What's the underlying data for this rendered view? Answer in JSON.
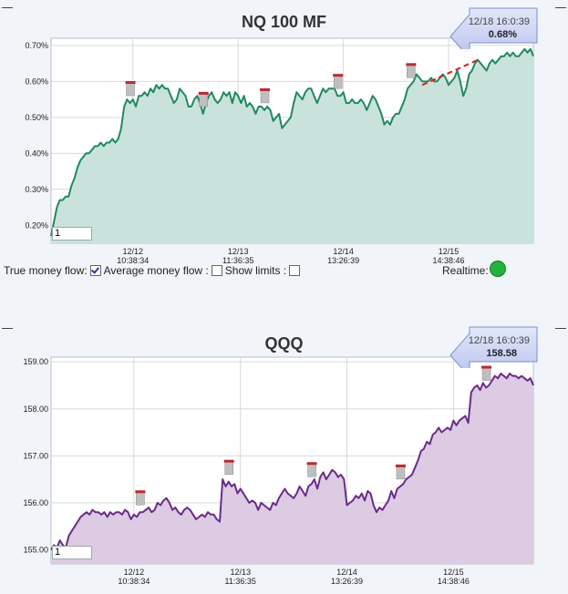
{
  "chart_data": [
    {
      "type": "area",
      "title": "NQ 100 MF",
      "ylim": [
        0.15,
        0.72
      ],
      "yticks": [
        0.2,
        0.3,
        0.4,
        0.5,
        0.6,
        0.7
      ],
      "ytick_labels": [
        "0.20%",
        "0.30%",
        "0.40%",
        "0.50%",
        "0.60%",
        "0.70%"
      ],
      "x_ticks": [
        {
          "date": "12/12",
          "time": "10:38:34"
        },
        {
          "date": "12/13",
          "time": "11:36:35"
        },
        {
          "date": "12/14",
          "time": "13:26:39"
        },
        {
          "date": "12/15",
          "time": "14:38:46"
        }
      ],
      "x_tick_index": [
        28,
        64,
        100,
        136
      ],
      "grid": true,
      "line_color": "#1e8a5e",
      "fill_color": "#c9e3dc",
      "values": [
        0.17,
        0.21,
        0.25,
        0.27,
        0.27,
        0.28,
        0.28,
        0.31,
        0.33,
        0.36,
        0.38,
        0.39,
        0.4,
        0.4,
        0.41,
        0.42,
        0.42,
        0.43,
        0.42,
        0.43,
        0.43,
        0.44,
        0.43,
        0.44,
        0.47,
        0.53,
        0.55,
        0.54,
        0.55,
        0.53,
        0.56,
        0.56,
        0.57,
        0.56,
        0.58,
        0.57,
        0.59,
        0.58,
        0.59,
        0.58,
        0.58,
        0.56,
        0.54,
        0.55,
        0.58,
        0.57,
        0.56,
        0.53,
        0.53,
        0.55,
        0.56,
        0.54,
        0.51,
        0.54,
        0.56,
        0.57,
        0.55,
        0.54,
        0.55,
        0.57,
        0.56,
        0.57,
        0.54,
        0.57,
        0.56,
        0.54,
        0.56,
        0.53,
        0.54,
        0.53,
        0.51,
        0.53,
        0.53,
        0.52,
        0.53,
        0.52,
        0.49,
        0.5,
        0.51,
        0.47,
        0.48,
        0.49,
        0.5,
        0.54,
        0.57,
        0.56,
        0.55,
        0.57,
        0.58,
        0.58,
        0.56,
        0.54,
        0.56,
        0.58,
        0.57,
        0.58,
        0.58,
        0.58,
        0.56,
        0.56,
        0.57,
        0.54,
        0.54,
        0.55,
        0.54,
        0.54,
        0.55,
        0.54,
        0.52,
        0.54,
        0.56,
        0.55,
        0.53,
        0.51,
        0.48,
        0.49,
        0.48,
        0.5,
        0.51,
        0.51,
        0.53,
        0.55,
        0.58,
        0.59,
        0.6,
        0.62,
        0.61,
        0.6,
        0.6,
        0.6,
        0.61,
        0.6,
        0.6,
        0.61,
        0.62,
        0.61,
        0.59,
        0.6,
        0.61,
        0.63,
        0.6,
        0.56,
        0.58,
        0.62,
        0.63,
        0.65,
        0.66,
        0.65,
        0.64,
        0.63,
        0.65,
        0.66,
        0.65,
        0.66,
        0.67,
        0.67,
        0.68,
        0.67,
        0.68,
        0.67,
        0.67,
        0.68,
        0.69,
        0.68,
        0.69,
        0.67
      ],
      "markers": [
        27,
        52,
        73,
        98,
        123
      ],
      "trend_line": {
        "from": [
          127,
          0.59
        ],
        "to": [
          146,
          0.66
        ],
        "color": "#e02020"
      }
    },
    {
      "type": "area",
      "title": "QQQ",
      "ylim": [
        154.7,
        159.1
      ],
      "yticks": [
        155,
        156,
        157,
        158,
        159
      ],
      "ytick_labels": [
        "155.00",
        "156.00",
        "157.00",
        "158.00",
        "159.00"
      ],
      "x_ticks": [
        {
          "date": "12/12",
          "time": "10:38:34"
        },
        {
          "date": "12/13",
          "time": "11:36:35"
        },
        {
          "date": "12/14",
          "time": "13:26:39"
        },
        {
          "date": "12/15",
          "time": "14:38:46"
        }
      ],
      "x_tick_index": [
        28,
        64,
        100,
        136
      ],
      "grid": true,
      "line_color": "#6b2a8a",
      "fill_color": "#dccbe3",
      "values": [
        155.0,
        155.1,
        155.05,
        155.2,
        155.1,
        155.05,
        155.3,
        155.4,
        155.5,
        155.6,
        155.7,
        155.75,
        155.8,
        155.75,
        155.85,
        155.8,
        155.8,
        155.75,
        155.8,
        155.7,
        155.8,
        155.75,
        155.8,
        155.8,
        155.75,
        155.85,
        155.8,
        155.65,
        155.75,
        155.7,
        155.8,
        155.8,
        155.85,
        155.9,
        155.8,
        155.85,
        156.0,
        155.95,
        156.05,
        156.1,
        156.0,
        155.85,
        155.9,
        155.8,
        155.75,
        155.85,
        155.9,
        155.85,
        155.75,
        155.65,
        155.7,
        155.75,
        155.7,
        155.8,
        155.75,
        155.75,
        155.65,
        155.6,
        156.5,
        156.35,
        156.45,
        156.35,
        156.4,
        156.2,
        156.3,
        156.2,
        156.1,
        156.0,
        156.05,
        156.0,
        155.85,
        156.0,
        155.95,
        155.9,
        155.85,
        156.0,
        155.95,
        156.1,
        156.2,
        156.3,
        156.2,
        156.15,
        156.1,
        156.2,
        156.35,
        156.25,
        156.15,
        156.35,
        156.4,
        156.5,
        156.3,
        156.55,
        156.65,
        156.5,
        156.6,
        156.7,
        156.65,
        156.55,
        156.6,
        156.5,
        155.95,
        156.0,
        156.05,
        156.15,
        156.1,
        156.2,
        156.05,
        156.25,
        156.2,
        155.95,
        155.8,
        155.9,
        155.85,
        155.95,
        156.05,
        156.25,
        156.1,
        156.3,
        156.35,
        156.4,
        156.5,
        156.55,
        156.6,
        156.75,
        156.9,
        157.1,
        157.15,
        157.3,
        157.25,
        157.45,
        157.5,
        157.6,
        157.5,
        157.55,
        157.6,
        157.55,
        157.75,
        157.65,
        157.75,
        157.8,
        157.85,
        157.7,
        158.35,
        158.45,
        158.5,
        158.4,
        158.55,
        158.45,
        158.5,
        158.6,
        158.7,
        158.65,
        158.75,
        158.7,
        158.65,
        158.75,
        158.7,
        158.7,
        158.65,
        158.7,
        158.65,
        158.6,
        158.65,
        158.5
      ],
      "markers": [
        30,
        60,
        88,
        118,
        147
      ]
    }
  ],
  "top_callout": {
    "time": "12/18 16:0:39",
    "value": "0.68%"
  },
  "bottom_callout": {
    "time": "12/18 16:0:39",
    "value": "158.58"
  },
  "top_input_value": "1",
  "bottom_input_value": "1",
  "controls": {
    "true_money_flow_label": "True money flow:",
    "average_money_flow_label": "Average money flow :",
    "show_limits_label": "Show limits :",
    "true_money_flow_checked": true,
    "average_money_flow_checked": false,
    "show_limits_checked": false
  },
  "realtime_label": "Realtime:",
  "realtime_color": "#22b33a"
}
